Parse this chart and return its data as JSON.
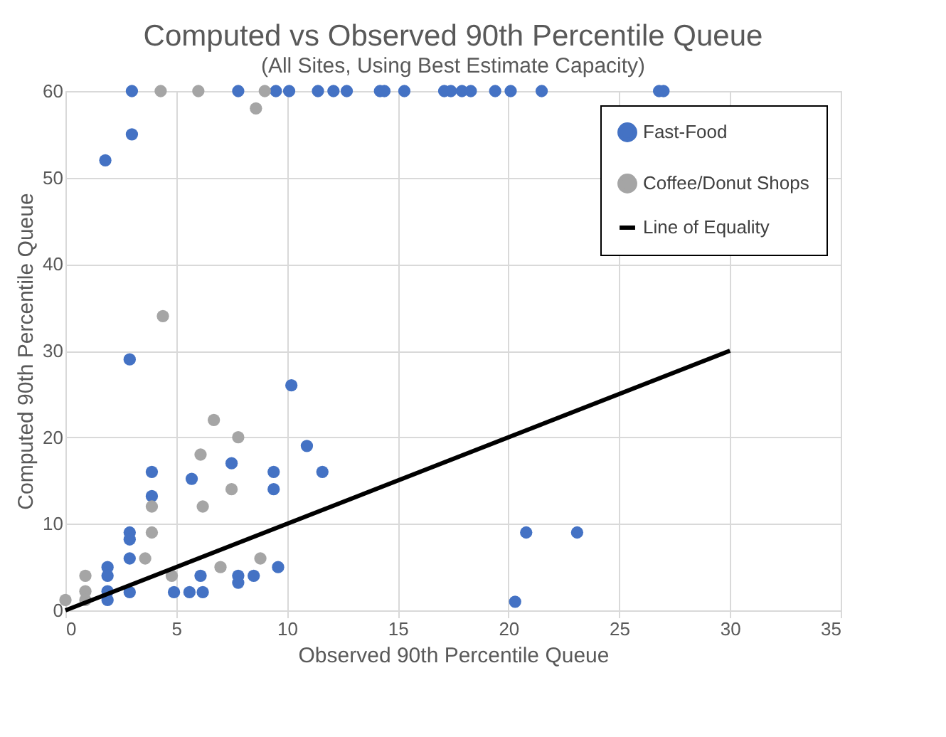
{
  "chart_data": {
    "type": "scatter",
    "title": "Computed vs Observed 90th Percentile Queue",
    "subtitle": "(All Sites, Using Best Estimate Capacity)",
    "xlabel": "Observed 90th Percentile Queue",
    "ylabel": "Computed 90th Percentile Queue",
    "xlim": [
      0,
      35
    ],
    "xticks": [
      0,
      5,
      10,
      15,
      20,
      25,
      30,
      35
    ],
    "ylim": [
      0,
      60
    ],
    "yticks": [
      0,
      10,
      20,
      30,
      40,
      50,
      60
    ],
    "grid": true,
    "legend": "top right",
    "series": [
      {
        "name": "Fast-Food",
        "color": "#4472c4",
        "marker": "circle",
        "x": [
          3,
          7.8,
          9.5,
          10.1,
          11.4,
          12.1,
          12.7,
          14.2,
          14.4,
          15.3,
          17.1,
          17.4,
          17.9,
          18.3,
          19.4,
          20.1,
          21.5,
          26.8,
          27,
          3,
          1.8,
          2.9,
          10.2,
          10.9,
          7.5,
          3.9,
          9.4,
          11.6,
          5.7,
          9.4,
          3.9,
          2.9,
          2.9,
          2.9,
          1.9,
          1.9,
          6.1,
          7.8,
          7.8,
          8.5,
          9.6,
          1.9,
          2.9,
          4.9,
          5.6,
          6.2,
          1.9,
          20.8,
          23.1,
          20.3
        ],
        "values": [
          60,
          60,
          60,
          60,
          60,
          60,
          60,
          60,
          60,
          60,
          60,
          60,
          60,
          60,
          60,
          60,
          60,
          60,
          60,
          55,
          52,
          29,
          26,
          19,
          17,
          16,
          16,
          16,
          15.2,
          14,
          13.2,
          9,
          8.2,
          6,
          5,
          4,
          4,
          4,
          3.2,
          4,
          5,
          2.2,
          2.1,
          2.1,
          2.1,
          2.1,
          1.2,
          9,
          9,
          1
        ]
      },
      {
        "name": "Coffee/Donut Shops",
        "color": "#a5a5a5",
        "marker": "circle",
        "x": [
          4.3,
          6,
          9,
          8.6,
          4.4,
          6.7,
          7.8,
          6.1,
          7.5,
          3.9,
          6.2,
          3.9,
          3.6,
          0.9,
          4.8,
          7,
          8.8,
          0.9,
          0.9,
          0
        ],
        "values": [
          60,
          60,
          60,
          58,
          34,
          22,
          20,
          18,
          14,
          12,
          12,
          9,
          6,
          4,
          4,
          5,
          6,
          2.2,
          1.2,
          1.2
        ]
      },
      {
        "name": "Line of Equality",
        "type": "line",
        "color": "#000000",
        "x": [
          0,
          30
        ],
        "values": [
          0,
          30
        ],
        "line_style": "solid"
      }
    ]
  }
}
